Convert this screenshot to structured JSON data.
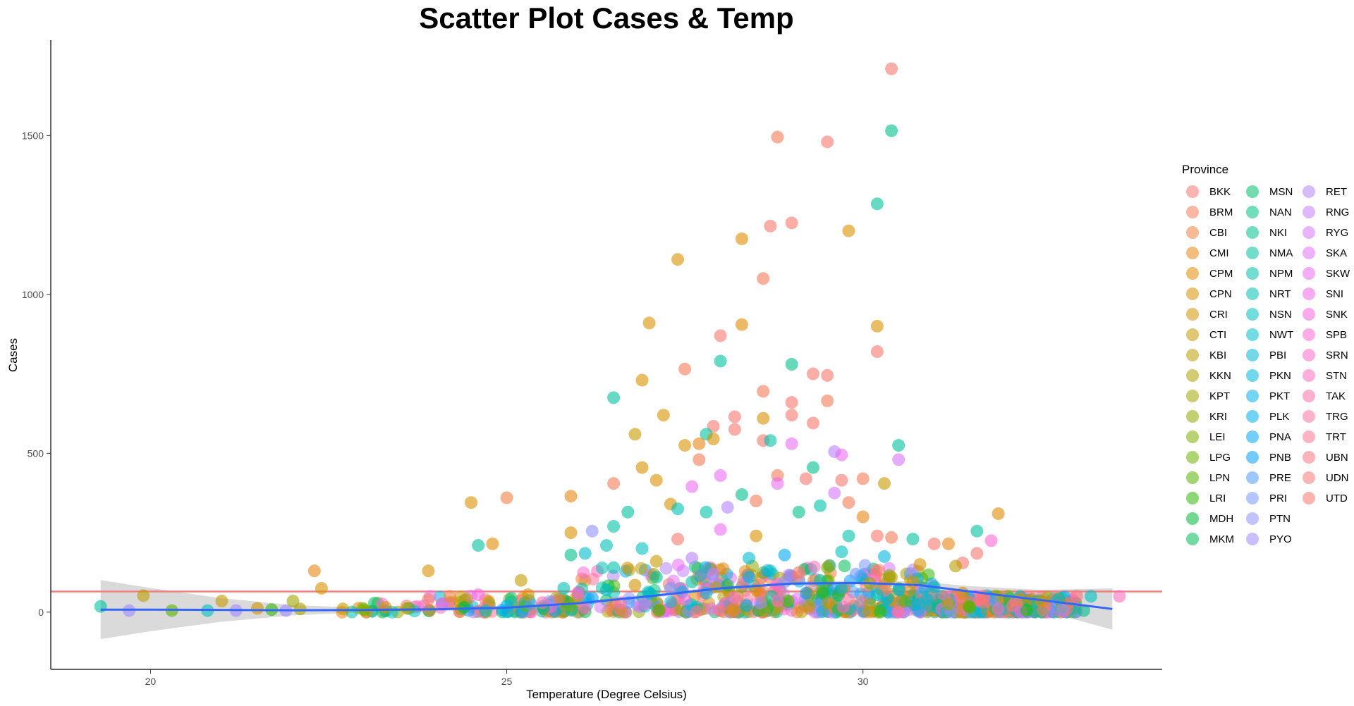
{
  "chart_data": {
    "type": "scatter",
    "title": "Scatter Plot Cases & Temp",
    "xlabel": "Temperature (Degree Celsius)",
    "ylabel": "Cases",
    "xlim": [
      18.6,
      34.2
    ],
    "ylim": [
      -180,
      1800
    ],
    "x_ticks": [
      20,
      25,
      30
    ],
    "y_ticks": [
      0,
      500,
      1000,
      1500
    ],
    "grid": false,
    "legend": {
      "title": "Province",
      "placement": "right",
      "entries": [
        "BKK",
        "BRM",
        "CBI",
        "CMI",
        "CPM",
        "CPN",
        "CRI",
        "CTI",
        "KBI",
        "KKN",
        "KPT",
        "KRI",
        "LEI",
        "LPG",
        "LPN",
        "LRI",
        "MDH",
        "MKM",
        "MSN",
        "NAN",
        "NKI",
        "NMA",
        "NPM",
        "NRT",
        "NSN",
        "NWT",
        "PBI",
        "PKN",
        "PKT",
        "PLK",
        "PNA",
        "PNB",
        "PRE",
        "PRI",
        "PTN",
        "PYO",
        "RET",
        "RNG",
        "RYG",
        "SKA",
        "SKW",
        "SNI",
        "SNK",
        "SPB",
        "SRN",
        "STN",
        "TAK",
        "TRG",
        "TRT",
        "UBN",
        "UDN",
        "UTD"
      ]
    },
    "reference_line": {
      "y": 65,
      "color": "#f08080"
    },
    "smooth": {
      "color": "#3366ff",
      "band_color": "#d3d3d3",
      "points": [
        {
          "x": 19.3,
          "y": 8,
          "lo": -85,
          "hi": 101
        },
        {
          "x": 20.0,
          "y": 8,
          "lo": -60,
          "hi": 76
        },
        {
          "x": 21.0,
          "y": 7,
          "lo": -30,
          "hi": 44
        },
        {
          "x": 22.0,
          "y": 6,
          "lo": -10,
          "hi": 22
        },
        {
          "x": 23.0,
          "y": 7,
          "lo": 0,
          "hi": 14
        },
        {
          "x": 24.0,
          "y": 9,
          "lo": 3,
          "hi": 15
        },
        {
          "x": 25.0,
          "y": 14,
          "lo": 8,
          "hi": 20
        },
        {
          "x": 26.0,
          "y": 28,
          "lo": 22,
          "hi": 34
        },
        {
          "x": 27.0,
          "y": 50,
          "lo": 44,
          "hi": 56
        },
        {
          "x": 28.0,
          "y": 75,
          "lo": 69,
          "hi": 81
        },
        {
          "x": 29.0,
          "y": 90,
          "lo": 84,
          "hi": 96
        },
        {
          "x": 30.0,
          "y": 92,
          "lo": 84,
          "hi": 100
        },
        {
          "x": 30.8,
          "y": 85,
          "lo": 74,
          "hi": 96
        },
        {
          "x": 31.5,
          "y": 65,
          "lo": 48,
          "hi": 82
        },
        {
          "x": 32.5,
          "y": 38,
          "lo": 6,
          "hi": 70
        },
        {
          "x": 33.5,
          "y": 10,
          "lo": -55,
          "hi": 75
        }
      ]
    },
    "points": [
      {
        "x": 30.4,
        "y": 1710,
        "province": "BKK"
      },
      {
        "x": 30.4,
        "y": 1515,
        "province": "NKI"
      },
      {
        "x": 28.8,
        "y": 1495,
        "province": "BRM"
      },
      {
        "x": 29.5,
        "y": 1480,
        "province": "BKK"
      },
      {
        "x": 30.2,
        "y": 1285,
        "province": "NMA"
      },
      {
        "x": 29.0,
        "y": 1225,
        "province": "BKK"
      },
      {
        "x": 28.7,
        "y": 1215,
        "province": "BKK"
      },
      {
        "x": 29.8,
        "y": 1200,
        "province": "CPN"
      },
      {
        "x": 28.3,
        "y": 1175,
        "province": "CPM"
      },
      {
        "x": 27.4,
        "y": 1110,
        "province": "CPN"
      },
      {
        "x": 28.6,
        "y": 1050,
        "province": "BRM"
      },
      {
        "x": 27.0,
        "y": 910,
        "province": "CPN"
      },
      {
        "x": 28.3,
        "y": 905,
        "province": "CPM"
      },
      {
        "x": 30.2,
        "y": 900,
        "province": "CPN"
      },
      {
        "x": 28.0,
        "y": 870,
        "province": "BKK"
      },
      {
        "x": 30.2,
        "y": 820,
        "province": "BKK"
      },
      {
        "x": 28.0,
        "y": 790,
        "province": "NMA"
      },
      {
        "x": 29.0,
        "y": 780,
        "province": "NNKI"
      },
      {
        "x": 27.5,
        "y": 765,
        "province": "BRM"
      },
      {
        "x": 29.3,
        "y": 750,
        "province": "BKK"
      },
      {
        "x": 29.5,
        "y": 745,
        "province": "BKK"
      },
      {
        "x": 26.9,
        "y": 730,
        "province": "CPN"
      },
      {
        "x": 26.5,
        "y": 675,
        "province": "NMA"
      },
      {
        "x": 28.6,
        "y": 695,
        "province": "BRM"
      },
      {
        "x": 29.5,
        "y": 665,
        "province": "BRM"
      },
      {
        "x": 29.0,
        "y": 660,
        "province": "BKK"
      },
      {
        "x": 27.2,
        "y": 620,
        "province": "CPN"
      },
      {
        "x": 28.2,
        "y": 615,
        "province": "BKK"
      },
      {
        "x": 29.0,
        "y": 620,
        "province": "BKK"
      },
      {
        "x": 28.6,
        "y": 610,
        "province": "CPN"
      },
      {
        "x": 29.3,
        "y": 595,
        "province": "BKK"
      },
      {
        "x": 27.9,
        "y": 585,
        "province": "BKK"
      },
      {
        "x": 28.2,
        "y": 575,
        "province": "BKK"
      },
      {
        "x": 27.8,
        "y": 560,
        "province": "NMA"
      },
      {
        "x": 26.8,
        "y": 560,
        "province": "CTI"
      },
      {
        "x": 27.9,
        "y": 545,
        "province": "CPN"
      },
      {
        "x": 28.6,
        "y": 540,
        "province": "BKK"
      },
      {
        "x": 28.7,
        "y": 540,
        "province": "NPM"
      },
      {
        "x": 29.0,
        "y": 530,
        "province": "SKW"
      },
      {
        "x": 27.5,
        "y": 525,
        "province": "CPN"
      },
      {
        "x": 27.7,
        "y": 530,
        "province": "CMI"
      },
      {
        "x": 30.5,
        "y": 525,
        "province": "NMA"
      },
      {
        "x": 29.6,
        "y": 505,
        "province": "RET"
      },
      {
        "x": 29.7,
        "y": 495,
        "province": "SKW"
      },
      {
        "x": 30.5,
        "y": 480,
        "province": "RYG"
      },
      {
        "x": 27.7,
        "y": 480,
        "province": "BRM"
      },
      {
        "x": 26.9,
        "y": 455,
        "province": "CPN"
      },
      {
        "x": 29.3,
        "y": 455,
        "province": "NKI"
      },
      {
        "x": 28.0,
        "y": 430,
        "province": "SKW"
      },
      {
        "x": 28.8,
        "y": 430,
        "province": "BRM"
      },
      {
        "x": 29.2,
        "y": 420,
        "province": "BKK"
      },
      {
        "x": 29.7,
        "y": 415,
        "province": "BKK"
      },
      {
        "x": 30.0,
        "y": 420,
        "province": "BRM"
      },
      {
        "x": 27.1,
        "y": 415,
        "province": "CPN"
      },
      {
        "x": 26.5,
        "y": 405,
        "province": "BRM"
      },
      {
        "x": 30.3,
        "y": 405,
        "province": "CTI"
      },
      {
        "x": 28.8,
        "y": 405,
        "province": "SKW"
      },
      {
        "x": 27.6,
        "y": 395,
        "province": "SKW"
      },
      {
        "x": 29.6,
        "y": 375,
        "province": "RYG"
      },
      {
        "x": 25.0,
        "y": 360,
        "province": "CBI"
      },
      {
        "x": 25.9,
        "y": 365,
        "province": "CMI"
      },
      {
        "x": 24.5,
        "y": 345,
        "province": "CPN"
      },
      {
        "x": 28.5,
        "y": 350,
        "province": "BRM"
      },
      {
        "x": 28.3,
        "y": 370,
        "province": "NKI"
      },
      {
        "x": 27.3,
        "y": 340,
        "province": "CPN"
      },
      {
        "x": 27.4,
        "y": 325,
        "province": "NRT"
      },
      {
        "x": 28.1,
        "y": 330,
        "province": "RET"
      },
      {
        "x": 29.4,
        "y": 335,
        "province": "NPM"
      },
      {
        "x": 29.8,
        "y": 345,
        "province": "BRM"
      },
      {
        "x": 26.7,
        "y": 315,
        "province": "NMA"
      },
      {
        "x": 27.8,
        "y": 315,
        "province": "NPM"
      },
      {
        "x": 29.1,
        "y": 315,
        "province": "NKI"
      },
      {
        "x": 30.0,
        "y": 300,
        "province": "CMI"
      },
      {
        "x": 30.2,
        "y": 240,
        "province": "BKK"
      },
      {
        "x": 31.9,
        "y": 310,
        "province": "CPM"
      },
      {
        "x": 24.6,
        "y": 210,
        "province": "NMA"
      },
      {
        "x": 24.8,
        "y": 215,
        "province": "CPM"
      },
      {
        "x": 26.2,
        "y": 255,
        "province": "PTN"
      },
      {
        "x": 25.9,
        "y": 250,
        "province": "CPN"
      },
      {
        "x": 26.5,
        "y": 270,
        "province": "NPM"
      },
      {
        "x": 26.4,
        "y": 210,
        "province": "NRT"
      },
      {
        "x": 26.9,
        "y": 200,
        "province": "NSN"
      },
      {
        "x": 27.4,
        "y": 230,
        "province": "BKK"
      },
      {
        "x": 28.0,
        "y": 260,
        "province": "SKW"
      },
      {
        "x": 28.5,
        "y": 240,
        "province": "CPN"
      },
      {
        "x": 29.8,
        "y": 240,
        "province": "NPM"
      },
      {
        "x": 30.4,
        "y": 235,
        "province": "BRM"
      },
      {
        "x": 30.7,
        "y": 230,
        "province": "NMA"
      },
      {
        "x": 31.0,
        "y": 215,
        "province": "BKK"
      },
      {
        "x": 31.2,
        "y": 215,
        "province": "CMI"
      },
      {
        "x": 31.6,
        "y": 255,
        "province": "NMA"
      },
      {
        "x": 31.8,
        "y": 225,
        "province": "SPB"
      },
      {
        "x": 31.6,
        "y": 185,
        "province": "BKK"
      },
      {
        "x": 22.3,
        "y": 130,
        "province": "CMI"
      },
      {
        "x": 23.9,
        "y": 130,
        "province": "CPN"
      },
      {
        "x": 25.2,
        "y": 100,
        "province": "CTI"
      },
      {
        "x": 25.9,
        "y": 180,
        "province": "NNKI"
      },
      {
        "x": 26.1,
        "y": 185,
        "province": "NWT"
      },
      {
        "x": 26.5,
        "y": 140,
        "province": "NPM"
      },
      {
        "x": 27.1,
        "y": 160,
        "province": "CTI"
      },
      {
        "x": 27.6,
        "y": 170,
        "province": "RET"
      },
      {
        "x": 28.4,
        "y": 170,
        "province": "PBI"
      },
      {
        "x": 28.9,
        "y": 180,
        "province": "PNA"
      },
      {
        "x": 29.7,
        "y": 190,
        "province": "NSN"
      },
      {
        "x": 30.3,
        "y": 175,
        "province": "PKN"
      },
      {
        "x": 30.8,
        "y": 150,
        "province": "CPN"
      },
      {
        "x": 31.4,
        "y": 155,
        "province": "BKK"
      },
      {
        "x": 31.3,
        "y": 145,
        "province": "KBI"
      },
      {
        "x": 19.3,
        "y": 18,
        "province": "NMA"
      },
      {
        "x": 19.7,
        "y": 5,
        "province": "PYO"
      },
      {
        "x": 19.9,
        "y": 52,
        "province": "KBI"
      },
      {
        "x": 20.3,
        "y": 5,
        "province": "LPN"
      },
      {
        "x": 20.8,
        "y": 5,
        "province": "NSN"
      },
      {
        "x": 21.0,
        "y": 35,
        "province": "CTI"
      },
      {
        "x": 21.2,
        "y": 5,
        "province": "PYO"
      },
      {
        "x": 21.5,
        "y": 12,
        "province": "CRI"
      },
      {
        "x": 21.7,
        "y": 8,
        "province": "LRI"
      },
      {
        "x": 21.9,
        "y": 5,
        "province": "PYO"
      },
      {
        "x": 22.0,
        "y": 35,
        "province": "KPT"
      },
      {
        "x": 22.1,
        "y": 10,
        "province": "KKN"
      },
      {
        "x": 22.4,
        "y": 75,
        "province": "CPN"
      },
      {
        "x": 22.7,
        "y": 10,
        "province": "CTI"
      },
      {
        "x": 23.0,
        "y": 8,
        "province": "LPG"
      },
      {
        "x": 23.3,
        "y": 15,
        "province": "CRI"
      },
      {
        "x": 23.6,
        "y": 12,
        "province": "KBI"
      },
      {
        "x": 23.9,
        "y": 40,
        "province": "BRM"
      },
      {
        "x": 24.1,
        "y": 25,
        "province": "RET"
      },
      {
        "x": 24.2,
        "y": 50,
        "province": "CBI"
      },
      {
        "x": 24.4,
        "y": 15,
        "province": "MDH"
      },
      {
        "x": 24.6,
        "y": 55,
        "province": "SNK"
      },
      {
        "x": 24.7,
        "y": 5,
        "province": "NSN"
      },
      {
        "x": 25.0,
        "y": 20,
        "province": "PKT"
      },
      {
        "x": 25.3,
        "y": 55,
        "province": "CPN"
      },
      {
        "x": 25.5,
        "y": 30,
        "province": "STN"
      },
      {
        "x": 25.8,
        "y": 75,
        "province": "NRT"
      },
      {
        "x": 26.0,
        "y": 60,
        "province": "SKW"
      },
      {
        "x": 26.2,
        "y": 45,
        "province": "PNA"
      },
      {
        "x": 26.4,
        "y": 70,
        "province": "NWT"
      },
      {
        "x": 26.6,
        "y": 30,
        "province": "TAK"
      },
      {
        "x": 26.8,
        "y": 85,
        "province": "CRI"
      },
      {
        "x": 27.0,
        "y": 60,
        "province": "PBI"
      },
      {
        "x": 27.1,
        "y": 110,
        "province": "NMA"
      },
      {
        "x": 27.3,
        "y": 75,
        "province": "PRI"
      },
      {
        "x": 27.5,
        "y": 40,
        "province": "SNK"
      },
      {
        "x": 27.6,
        "y": 95,
        "province": "NPM"
      },
      {
        "x": 27.8,
        "y": 60,
        "province": "PKN"
      },
      {
        "x": 27.9,
        "y": 120,
        "province": "RNG"
      },
      {
        "x": 28.1,
        "y": 85,
        "province": "MKM"
      },
      {
        "x": 28.2,
        "y": 45,
        "province": "SPB"
      },
      {
        "x": 28.4,
        "y": 110,
        "province": "PLK"
      },
      {
        "x": 28.5,
        "y": 70,
        "province": "CPM"
      },
      {
        "x": 28.7,
        "y": 130,
        "province": "NSN"
      },
      {
        "x": 28.8,
        "y": 35,
        "province": "STN"
      },
      {
        "x": 28.9,
        "y": 95,
        "province": "PTN"
      },
      {
        "x": 29.1,
        "y": 125,
        "province": "BKK"
      },
      {
        "x": 29.2,
        "y": 60,
        "province": "PNB"
      },
      {
        "x": 29.4,
        "y": 100,
        "province": "NKI"
      },
      {
        "x": 29.5,
        "y": 140,
        "province": "LEI"
      },
      {
        "x": 29.7,
        "y": 75,
        "province": "PKT"
      },
      {
        "x": 29.8,
        "y": 40,
        "province": "TRG"
      },
      {
        "x": 29.9,
        "y": 120,
        "province": "PRI"
      },
      {
        "x": 30.1,
        "y": 90,
        "province": "KRI"
      },
      {
        "x": 30.2,
        "y": 55,
        "province": "NWT"
      },
      {
        "x": 30.4,
        "y": 110,
        "province": "CTI"
      },
      {
        "x": 30.5,
        "y": 70,
        "province": "PKN"
      },
      {
        "x": 30.7,
        "y": 95,
        "province": "CRI"
      },
      {
        "x": 30.9,
        "y": 40,
        "province": "PBI"
      },
      {
        "x": 31.0,
        "y": 80,
        "province": "NPM"
      },
      {
        "x": 31.2,
        "y": 25,
        "province": "KPT"
      },
      {
        "x": 31.4,
        "y": 60,
        "province": "CPN"
      },
      {
        "x": 31.5,
        "y": 15,
        "province": "LPN"
      },
      {
        "x": 31.7,
        "y": 45,
        "province": "UDN"
      },
      {
        "x": 31.9,
        "y": 10,
        "province": "SRN"
      },
      {
        "x": 32.1,
        "y": 20,
        "province": "TRT"
      },
      {
        "x": 32.3,
        "y": 5,
        "province": "LRI"
      },
      {
        "x": 32.5,
        "y": 35,
        "province": "CPM"
      },
      {
        "x": 32.8,
        "y": 10,
        "province": "PTN"
      },
      {
        "x": 33.0,
        "y": 50,
        "province": "UBN"
      },
      {
        "x": 33.1,
        "y": 5,
        "province": "NKI"
      },
      {
        "x": 33.2,
        "y": 50,
        "province": "NSN"
      },
      {
        "x": 33.6,
        "y": 50,
        "province": "STN"
      }
    ],
    "dense_band": {
      "note_hidden": true,
      "x_range": [
        22.5,
        33.0
      ],
      "count": 900
    }
  },
  "legend_colors": [
    "#F8766D",
    "#F47C59",
    "#EF8142",
    "#E98616",
    "#E28A00",
    "#DA8F00",
    "#D19300",
    "#C69900",
    "#BA9E00",
    "#AEA200",
    "#A0A600",
    "#90AA00",
    "#7FAD00",
    "#6BB100",
    "#53B400",
    "#31B706",
    "#00BA38",
    "#00BC59",
    "#00BE6E",
    "#00BF7F",
    "#00C08E",
    "#00C19C",
    "#00C1A8",
    "#00C0B4",
    "#00BFC0",
    "#00BDCA",
    "#00BAD4",
    "#00B7DD",
    "#00B3E6",
    "#00AEED",
    "#00A8F4",
    "#00A1F9",
    "#4E9BFD",
    "#7897FF",
    "#8F91FF",
    "#A48AFF",
    "#B683FF",
    "#C67DFF",
    "#D576FE",
    "#E072F8",
    "#EA6CF1",
    "#F265E8",
    "#F866DE",
    "#FC68D3",
    "#FF6AC6",
    "#FF6DB9",
    "#FF6FAB",
    "#FF729D",
    "#FD7490",
    "#FB7482",
    "#F97676",
    "#F8766D"
  ]
}
